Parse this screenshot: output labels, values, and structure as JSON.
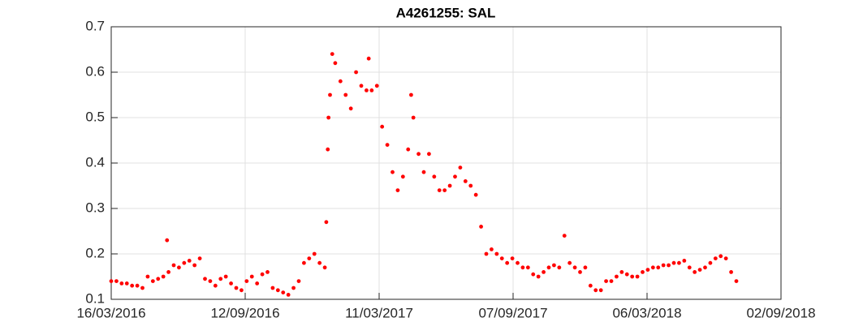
{
  "chart_data": {
    "type": "scatter",
    "title": "A4261255: SAL",
    "x": [
      "2016-03-16",
      "2016-03-23",
      "2016-03-30",
      "2016-04-06",
      "2016-04-13",
      "2016-04-20",
      "2016-04-27",
      "2016-05-04",
      "2016-05-11",
      "2016-05-18",
      "2016-05-25",
      "2016-05-30",
      "2016-06-01",
      "2016-06-08",
      "2016-06-15",
      "2016-06-22",
      "2016-06-29",
      "2016-07-06",
      "2016-07-13",
      "2016-07-20",
      "2016-07-27",
      "2016-08-03",
      "2016-08-10",
      "2016-08-17",
      "2016-08-24",
      "2016-08-31",
      "2016-09-07",
      "2016-09-14",
      "2016-09-21",
      "2016-09-28",
      "2016-10-05",
      "2016-10-12",
      "2016-10-19",
      "2016-10-26",
      "2016-11-02",
      "2016-11-09",
      "2016-11-16",
      "2016-11-23",
      "2016-11-30",
      "2016-12-07",
      "2016-12-14",
      "2016-12-21",
      "2016-12-28",
      "2016-12-30",
      "2017-01-01",
      "2017-01-02",
      "2017-01-04",
      "2017-01-07",
      "2017-01-11",
      "2017-01-18",
      "2017-01-25",
      "2017-02-01",
      "2017-02-08",
      "2017-02-15",
      "2017-02-22",
      "2017-02-25",
      "2017-03-01",
      "2017-03-08",
      "2017-03-15",
      "2017-03-22",
      "2017-03-29",
      "2017-04-05",
      "2017-04-12",
      "2017-04-19",
      "2017-04-23",
      "2017-04-26",
      "2017-05-03",
      "2017-05-10",
      "2017-05-17",
      "2017-05-24",
      "2017-05-31",
      "2017-06-07",
      "2017-06-14",
      "2017-06-21",
      "2017-06-28",
      "2017-07-05",
      "2017-07-12",
      "2017-07-19",
      "2017-07-26",
      "2017-08-02",
      "2017-08-09",
      "2017-08-16",
      "2017-08-23",
      "2017-08-30",
      "2017-09-06",
      "2017-09-13",
      "2017-09-20",
      "2017-09-27",
      "2017-10-04",
      "2017-10-11",
      "2017-10-18",
      "2017-10-25",
      "2017-11-01",
      "2017-11-08",
      "2017-11-15",
      "2017-11-22",
      "2017-11-29",
      "2017-12-06",
      "2017-12-13",
      "2017-12-20",
      "2017-12-27",
      "2018-01-03",
      "2018-01-10",
      "2018-01-17",
      "2018-01-24",
      "2018-01-31",
      "2018-02-07",
      "2018-02-14",
      "2018-02-21",
      "2018-02-28",
      "2018-03-07",
      "2018-03-14",
      "2018-03-21",
      "2018-03-28",
      "2018-04-04",
      "2018-04-11",
      "2018-04-18",
      "2018-04-25",
      "2018-05-02",
      "2018-05-09",
      "2018-05-16",
      "2018-05-23",
      "2018-05-30",
      "2018-06-06",
      "2018-06-13",
      "2018-06-20",
      "2018-06-27",
      "2018-07-04"
    ],
    "values": [
      0.14,
      0.14,
      0.135,
      0.135,
      0.13,
      0.13,
      0.125,
      0.15,
      0.14,
      0.145,
      0.15,
      0.23,
      0.16,
      0.175,
      0.17,
      0.18,
      0.185,
      0.175,
      0.19,
      0.145,
      0.14,
      0.13,
      0.145,
      0.15,
      0.135,
      0.125,
      0.12,
      0.14,
      0.15,
      0.135,
      0.155,
      0.16,
      0.125,
      0.12,
      0.115,
      0.11,
      0.125,
      0.14,
      0.18,
      0.19,
      0.2,
      0.18,
      0.17,
      0.27,
      0.43,
      0.5,
      0.55,
      0.64,
      0.62,
      0.58,
      0.55,
      0.52,
      0.6,
      0.57,
      0.56,
      0.63,
      0.56,
      0.57,
      0.48,
      0.44,
      0.38,
      0.34,
      0.37,
      0.43,
      0.55,
      0.5,
      0.42,
      0.38,
      0.42,
      0.37,
      0.34,
      0.34,
      0.35,
      0.37,
      0.39,
      0.36,
      0.35,
      0.33,
      0.26,
      0.2,
      0.21,
      0.2,
      0.19,
      0.18,
      0.19,
      0.18,
      0.17,
      0.17,
      0.155,
      0.15,
      0.16,
      0.17,
      0.175,
      0.17,
      0.24,
      0.18,
      0.17,
      0.16,
      0.17,
      0.13,
      0.12,
      0.12,
      0.14,
      0.14,
      0.15,
      0.16,
      0.155,
      0.15,
      0.15,
      0.16,
      0.165,
      0.17,
      0.17,
      0.175,
      0.175,
      0.18,
      0.18,
      0.185,
      0.17,
      0.16,
      0.165,
      0.17,
      0.18,
      0.19,
      0.195,
      0.19,
      0.16,
      0.14
    ],
    "color": "#ff0000",
    "xlim": [
      "2016-03-16",
      "2018-09-02"
    ],
    "xticks": [
      {
        "value": "2016-03-16",
        "label": "16/03/2016"
      },
      {
        "value": "2016-09-12",
        "label": "12/09/2016"
      },
      {
        "value": "2017-03-11",
        "label": "11/03/2017"
      },
      {
        "value": "2017-09-07",
        "label": "07/09/2017"
      },
      {
        "value": "2018-03-06",
        "label": "06/03/2018"
      },
      {
        "value": "2018-09-02",
        "label": "02/09/2018"
      }
    ],
    "ylim": [
      0.1,
      0.7
    ],
    "yticks": [
      0.1,
      0.2,
      0.3,
      0.4,
      0.5,
      0.6,
      0.7
    ],
    "grid": true
  }
}
